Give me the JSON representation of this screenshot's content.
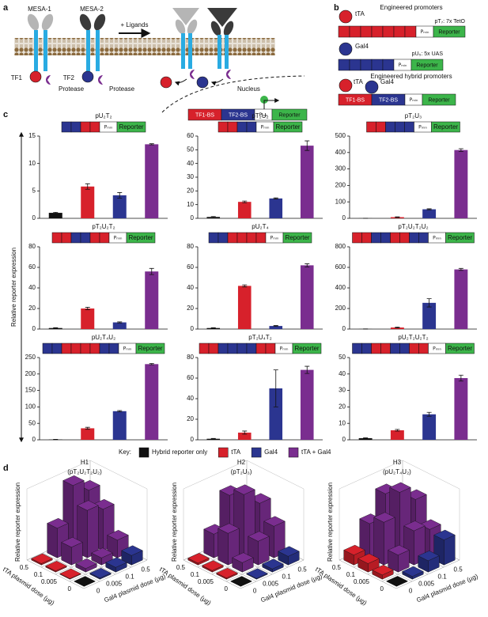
{
  "panel_a": {
    "label": "a",
    "mesa1": "MESA-1",
    "mesa2": "MESA-2",
    "ligands": "+ Ligands",
    "tf1": "TF1",
    "tf2": "TF2",
    "protease": "Protease",
    "nucleus": "Nucleus",
    "tf1_bs": "TF1-BS",
    "tf2_bs": "TF2-BS"
  },
  "promoter_parts": {
    "pmin": "Pₘᵢₙ",
    "reporter": "Reporter"
  },
  "panel_b": {
    "label": "b",
    "title1": "Engineered promoters",
    "tta": "tTA",
    "pt7": "pT₇: 7x TetO",
    "gal4": "Gal4",
    "pu5": "pU₅: 5x UAS",
    "title2": "Engineered hybrid promoters"
  },
  "panel_c": {
    "label": "c",
    "y_label": "Relative reporter expression",
    "key": {
      "title": "Key:",
      "items": [
        {
          "name": "Hybrid reporter only",
          "color": "#111111"
        },
        {
          "name": "tTA",
          "color": "#d7212b"
        },
        {
          "name": "Gal4",
          "color": "#2b3590"
        },
        {
          "name": "tTA + Gal4",
          "color": "#7a2d8f"
        }
      ]
    }
  },
  "panel_d": {
    "label": "d"
  },
  "chart_data": [
    {
      "type": "bar",
      "title": "pU₂T₂",
      "values": [
        1,
        5.8,
        4.2,
        13.5
      ],
      "errors": [
        0.1,
        0.5,
        0.5,
        0.1
      ],
      "ylim": [
        0,
        15
      ],
      "yticks": [
        0,
        5,
        10,
        15
      ]
    },
    {
      "type": "bar",
      "title": "pT₂U₂",
      "values": [
        1,
        12,
        14.5,
        53
      ],
      "errors": [
        0.3,
        0.6,
        0.4,
        3.5
      ],
      "ylim": [
        0,
        60
      ],
      "yticks": [
        0,
        10,
        20,
        30,
        40,
        50,
        60
      ]
    },
    {
      "type": "bar",
      "title": "pT₂U₃",
      "values": [
        0.5,
        7,
        55,
        415
      ],
      "errors": [
        0.2,
        2,
        3,
        8
      ],
      "ylim": [
        0,
        500
      ],
      "yticks": [
        0,
        100,
        200,
        300,
        400,
        500
      ]
    },
    {
      "type": "bar",
      "title": "pT₂U₂T₂",
      "values": [
        1,
        20,
        6.5,
        56
      ],
      "errors": [
        0.3,
        1.2,
        0.5,
        3
      ],
      "ylim": [
        0,
        80
      ],
      "yticks": [
        0,
        20,
        40,
        60,
        80
      ]
    },
    {
      "type": "bar",
      "title": "pU₂T₄",
      "values": [
        1,
        42,
        3,
        62
      ],
      "errors": [
        0.3,
        1,
        0.4,
        1.5
      ],
      "ylim": [
        0,
        80
      ],
      "yticks": [
        0,
        20,
        40,
        60,
        80
      ]
    },
    {
      "type": "bar",
      "title": "pT₂U₂T₂U₂",
      "values": [
        1,
        15,
        255,
        580
      ],
      "errors": [
        0.5,
        4,
        40,
        10
      ],
      "ylim": [
        0,
        800
      ],
      "yticks": [
        0,
        200,
        400,
        600,
        800
      ]
    },
    {
      "type": "bar",
      "title": "pU₂T₄U₂",
      "values": [
        1,
        35,
        87,
        230
      ],
      "errors": [
        0.3,
        3,
        2,
        2
      ],
      "ylim": [
        0,
        250
      ],
      "yticks": [
        0,
        50,
        100,
        150,
        200,
        250
      ]
    },
    {
      "type": "bar",
      "title": "pT₂U₄T₂",
      "values": [
        1,
        7,
        50,
        68
      ],
      "errors": [
        0.3,
        1.5,
        18,
        3.5
      ],
      "ylim": [
        0,
        80
      ],
      "yticks": [
        0,
        20,
        40,
        60,
        80
      ]
    },
    {
      "type": "bar",
      "title": "pU₂T₂U₂T₂",
      "values": [
        1,
        5.8,
        15.5,
        37.5
      ],
      "errors": [
        0.2,
        0.5,
        1.2,
        1.8
      ],
      "ylim": [
        0,
        50
      ],
      "yticks": [
        0,
        10,
        20,
        30,
        40,
        50
      ]
    },
    {
      "type": "bar3d",
      "title": "H1",
      "subtitle": "(pT₂U₂T₂U₂)",
      "x_label": "Gal4 plasmid dose (µg)",
      "y_label": "tTA plasmid dose (µg)",
      "z_label": "Relative reporter expression",
      "x_categories": [
        "0",
        "0.005",
        "0.1",
        "0.5"
      ],
      "y_categories": [
        "0",
        "0.005",
        "0.1",
        "0.5"
      ],
      "zlim": [
        0,
        600
      ],
      "values": [
        [
          1,
          10,
          40,
          80
        ],
        [
          5,
          30,
          60,
          150
        ],
        [
          10,
          150,
          400,
          350
        ],
        [
          12,
          250,
          550,
          450
        ]
      ]
    },
    {
      "type": "bar3d",
      "title": "H2",
      "subtitle": "(pT₂U₃)",
      "x_label": "Gal4 plasmid dose (µg)",
      "y_label": "tTA plasmid dose (µg)",
      "z_label": "Relative reporter expression",
      "x_categories": [
        "0",
        "0.005",
        "0.1",
        "0.5"
      ],
      "y_categories": [
        "0",
        "0.005",
        "0.1",
        "0.5"
      ],
      "zlim": [
        0,
        450
      ],
      "values": [
        [
          1,
          5,
          20,
          55
        ],
        [
          8,
          60,
          150,
          200
        ],
        [
          10,
          200,
          400,
          300
        ],
        [
          12,
          150,
          350,
          250
        ]
      ]
    },
    {
      "type": "bar3d",
      "title": "H3",
      "subtitle": "(pU₂T₄U₂)",
      "x_label": "Gal4 plasmid dose (µg)",
      "y_label": "tTA plasmid dose (µg)",
      "z_label": "Relative reporter expression",
      "x_categories": [
        "0",
        "0.005",
        "0.1",
        "0.5"
      ],
      "y_categories": [
        "0",
        "0.005",
        "0.1",
        "0.5"
      ],
      "zlim": [
        0,
        250
      ],
      "values": [
        [
          1,
          10,
          40,
          88
        ],
        [
          15,
          60,
          120,
          100
        ],
        [
          30,
          150,
          230,
          180
        ],
        [
          35,
          120,
          200,
          150
        ]
      ]
    }
  ]
}
